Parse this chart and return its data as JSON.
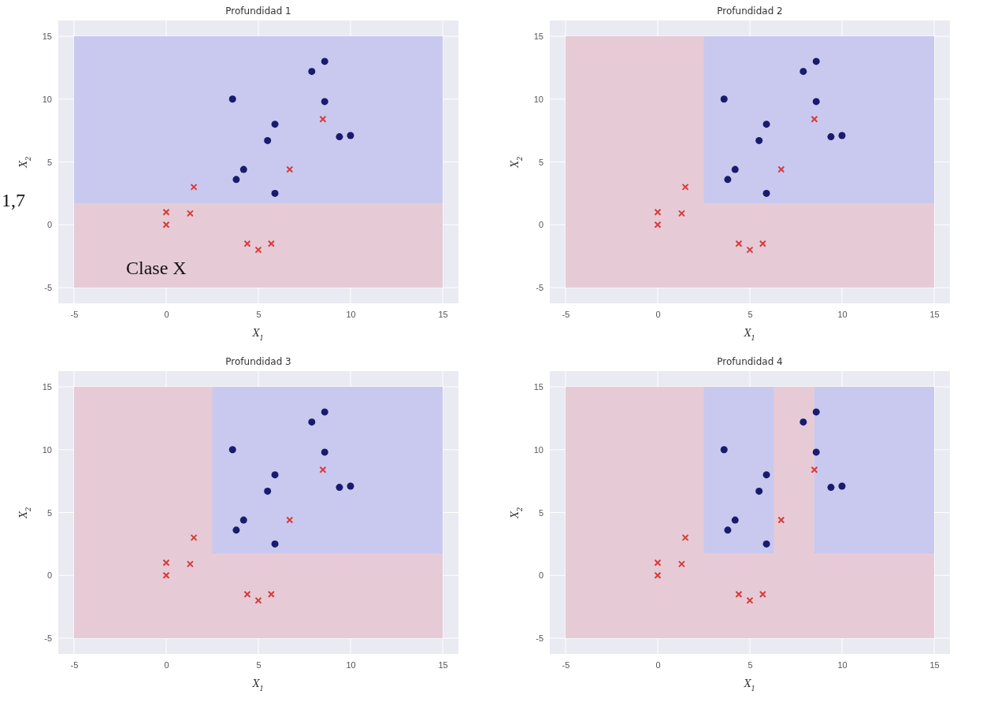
{
  "chart_data": [
    {
      "type": "scatter",
      "title": "Profundidad 1",
      "xlabel": "X$_{1}$",
      "ylabel": "X$_{2}$",
      "xlim": [
        -5,
        15
      ],
      "ylim": [
        -5,
        15
      ],
      "xticks": [
        -5,
        0,
        5,
        10,
        15
      ],
      "yticks": [
        -5,
        0,
        5,
        10,
        15
      ],
      "grid": true,
      "annotations": [
        "1,7",
        "Clase X"
      ],
      "bands": [
        {
          "axis": "y",
          "from": 1.7,
          "to": 15,
          "color": "#c9c9ef"
        },
        {
          "axis": "y",
          "from": -5,
          "to": 1.7,
          "color": "#e6cbd6"
        }
      ],
      "series": [
        {
          "marker": "circle",
          "color": "#1a1a6e",
          "x": [
            3.6,
            3.8,
            4.2,
            5.5,
            5.9,
            5.9,
            7.9,
            8.6,
            8.6,
            9.4,
            10
          ],
          "values": [
            10,
            3.6,
            4.4,
            6.7,
            8,
            2.5,
            12.2,
            13,
            9.8,
            7,
            7.1
          ]
        },
        {
          "marker": "cross",
          "color": "#d83a3a",
          "x": [
            1.5,
            0,
            0,
            1.3,
            4.4,
            5,
            5.7,
            6.7,
            8.5
          ],
          "values": [
            3,
            1,
            0,
            0.9,
            -1.5,
            -2,
            -1.5,
            4.4,
            8.4
          ]
        }
      ]
    },
    {
      "type": "scatter",
      "title": "Profundidad 2",
      "xlabel": "X$_{1}$",
      "ylabel": "X$_{2}$",
      "xlim": [
        -5,
        15
      ],
      "ylim": [
        -5,
        15
      ],
      "xticks": [
        -5,
        0,
        5,
        10,
        15
      ],
      "yticks": [
        -5,
        0,
        5,
        10,
        15
      ],
      "grid": true,
      "bands": [
        {
          "axis": "y",
          "from": 1.7,
          "to": 15,
          "color": "#c9c9ef"
        },
        {
          "axis": "x",
          "from": -5,
          "to": 2.5,
          "color": "#e6cbd6"
        },
        {
          "axis": "y",
          "from": -5,
          "to": 1.7,
          "color": "#e6cbd6"
        }
      ],
      "series": [
        {
          "marker": "circle",
          "color": "#1a1a6e",
          "x": [
            3.6,
            3.8,
            4.2,
            5.5,
            5.9,
            5.9,
            7.9,
            8.6,
            8.6,
            9.4,
            10
          ],
          "values": [
            10,
            3.6,
            4.4,
            6.7,
            8,
            2.5,
            12.2,
            13,
            9.8,
            7,
            7.1
          ]
        },
        {
          "marker": "cross",
          "color": "#d83a3a",
          "x": [
            1.5,
            0,
            0,
            1.3,
            4.4,
            5,
            5.7,
            6.7,
            8.5
          ],
          "values": [
            3,
            1,
            0,
            0.9,
            -1.5,
            -2,
            -1.5,
            4.4,
            8.4
          ]
        }
      ]
    },
    {
      "type": "scatter",
      "title": "Profundidad 3",
      "xlabel": "X$_{1}$",
      "ylabel": "X$_{2}$",
      "xlim": [
        -5,
        15
      ],
      "ylim": [
        -5,
        15
      ],
      "xticks": [
        -5,
        0,
        5,
        10,
        15
      ],
      "yticks": [
        -5,
        0,
        5,
        10,
        15
      ],
      "grid": true,
      "bands": [
        {
          "axis": "y",
          "from": 1.7,
          "to": 15,
          "color": "#c9c9ef"
        },
        {
          "axis": "x",
          "from": -5,
          "to": 2.5,
          "color": "#e6cbd6"
        },
        {
          "axis": "y",
          "from": -5,
          "to": 1.7,
          "color": "#e6cbd6"
        }
      ],
      "series": [
        {
          "marker": "circle",
          "color": "#1a1a6e",
          "x": [
            3.6,
            3.8,
            4.2,
            5.5,
            5.9,
            5.9,
            7.9,
            8.6,
            8.6,
            9.4,
            10
          ],
          "values": [
            10,
            3.6,
            4.4,
            6.7,
            8,
            2.5,
            12.2,
            13,
            9.8,
            7,
            7.1
          ]
        },
        {
          "marker": "cross",
          "color": "#d83a3a",
          "x": [
            1.5,
            0,
            0,
            1.3,
            4.4,
            5,
            5.7,
            6.7,
            8.5
          ],
          "values": [
            3,
            1,
            0,
            0.9,
            -1.5,
            -2,
            -1.5,
            4.4,
            8.4
          ]
        }
      ]
    },
    {
      "type": "scatter",
      "title": "Profundidad 4",
      "xlabel": "X$_{1}$",
      "ylabel": "X$_{2}$",
      "xlim": [
        -5,
        15
      ],
      "ylim": [
        -5,
        15
      ],
      "xticks": [
        -5,
        0,
        5,
        10,
        15
      ],
      "yticks": [
        -5,
        0,
        5,
        10,
        15
      ],
      "grid": true,
      "bands": [
        {
          "axis": "y",
          "from": 1.7,
          "to": 15,
          "color": "#c9c9ef"
        },
        {
          "axis": "x",
          "from": -5,
          "to": 2.5,
          "color": "#e6cbd6"
        },
        {
          "axis": "x",
          "from": 6.3,
          "to": 8.5,
          "color": "#e6cbd6"
        },
        {
          "axis": "y",
          "from": -5,
          "to": 1.7,
          "color": "#e6cbd6"
        }
      ],
      "series": [
        {
          "marker": "circle",
          "color": "#1a1a6e",
          "x": [
            3.6,
            3.8,
            4.2,
            5.5,
            5.9,
            5.9,
            7.9,
            8.6,
            8.6,
            9.4,
            10
          ],
          "values": [
            10,
            3.6,
            4.4,
            6.7,
            8,
            2.5,
            12.2,
            13,
            9.8,
            7,
            7.1
          ]
        },
        {
          "marker": "cross",
          "color": "#d83a3a",
          "x": [
            1.5,
            0,
            0,
            1.3,
            4.4,
            5,
            5.7,
            6.7,
            8.5
          ],
          "values": [
            3,
            1,
            0,
            0.9,
            -1.5,
            -2,
            -1.5,
            4.4,
            8.4
          ]
        }
      ]
    }
  ]
}
